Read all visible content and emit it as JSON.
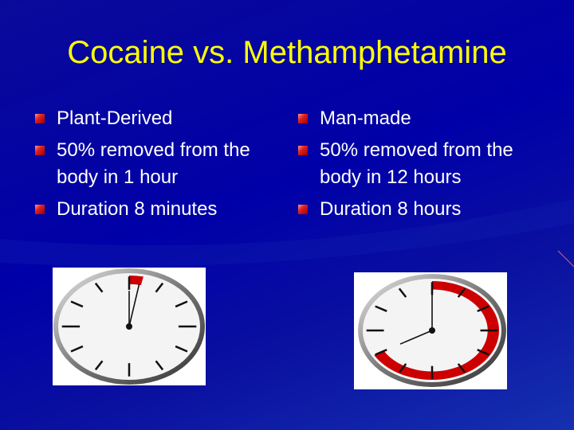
{
  "title": "Cocaine vs. Methamphetamine",
  "left_column": {
    "bullets": [
      "Plant-Derived",
      "50% removed from the body in 1 hour",
      "Duration 8 minutes"
    ]
  },
  "right_column": {
    "bullets": [
      "Man-made",
      "50% removed from the body in 12 hours",
      "Duration 8 hours"
    ]
  },
  "clocks": [
    {
      "name": "cocaine-clock",
      "highlighted_minutes": 8,
      "highlight_color": "#cc0000"
    },
    {
      "name": "methamphetamine-clock",
      "highlighted_hours": 8,
      "highlight_color": "#cc0000"
    }
  ],
  "colors": {
    "background": "#0000a8",
    "title": "#ffff00",
    "text": "#ffffff",
    "bullet": "#e02020"
  }
}
